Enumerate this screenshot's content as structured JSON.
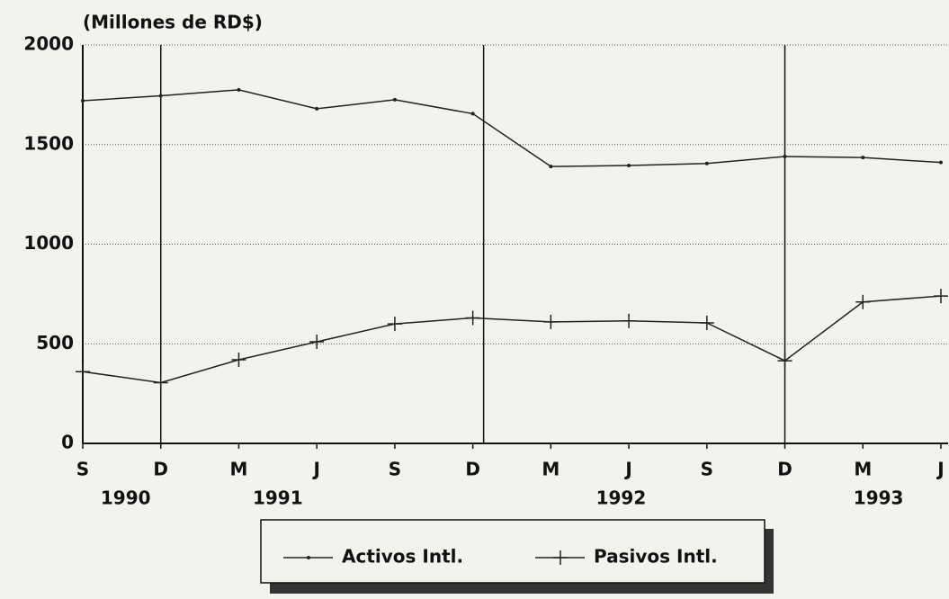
{
  "chart_data": {
    "type": "line",
    "y_label": "(Millones de RD$)",
    "categories": [
      "S",
      "D",
      "M",
      "J",
      "S",
      "D",
      "M",
      "J",
      "S",
      "D",
      "M",
      "J"
    ],
    "years": [
      "1990",
      "1991",
      "1992",
      "1993"
    ],
    "series": [
      {
        "name": "Activos Intl.",
        "color": "#222222",
        "marker": "dot",
        "values": [
          1720,
          1745,
          1775,
          1680,
          1725,
          1655,
          1390,
          1395,
          1405,
          1440,
          1435,
          1410
        ]
      },
      {
        "name": "Pasivos Intl.",
        "color": "#222222",
        "marker": "plus",
        "values": [
          360,
          305,
          420,
          510,
          600,
          630,
          610,
          615,
          605,
          415,
          710,
          740
        ]
      }
    ],
    "ylim": [
      0,
      2000
    ],
    "yticks": [
      0,
      500,
      1000,
      1500,
      2000
    ],
    "grid": true
  }
}
